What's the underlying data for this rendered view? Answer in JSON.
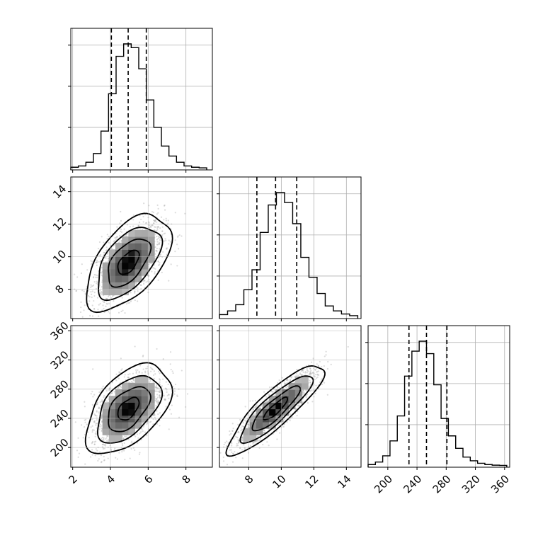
{
  "chart_data": {
    "type": "corner",
    "parameters": [
      {
        "ticks": [
          2,
          4,
          6,
          8
        ],
        "range": [
          1.9,
          9.4
        ]
      },
      {
        "ticks": [
          8,
          10,
          12,
          14
        ],
        "range": [
          6.2,
          14.9
        ]
      },
      {
        "ticks": [
          200,
          240,
          280,
          320,
          360
        ],
        "range": [
          173,
          367
        ]
      }
    ],
    "marginals": [
      {
        "parameter": 0,
        "quantiles": [
          4.05,
          4.94,
          5.9
        ],
        "bins": [
          1.9,
          2.3,
          2.7,
          3.1,
          3.5,
          3.9,
          4.3,
          4.7,
          5.1,
          5.5,
          5.9,
          6.3,
          6.7,
          7.1,
          7.5,
          7.9,
          8.3,
          8.7,
          9.1
        ],
        "counts": [
          0.01,
          0.02,
          0.05,
          0.12,
          0.3,
          0.6,
          0.9,
          1.0,
          0.97,
          0.8,
          0.55,
          0.33,
          0.18,
          0.1,
          0.05,
          0.02,
          0.01,
          0.005
        ]
      },
      {
        "parameter": 1,
        "quantiles": [
          8.5,
          9.65,
          10.95
        ],
        "bins": [
          6.2,
          6.7,
          7.2,
          7.7,
          8.2,
          8.7,
          9.2,
          9.7,
          10.2,
          10.7,
          11.2,
          11.7,
          12.2,
          12.7,
          13.2,
          13.7,
          14.2,
          14.7
        ],
        "counts": [
          0.02,
          0.05,
          0.1,
          0.22,
          0.38,
          0.68,
          0.9,
          1.0,
          0.92,
          0.75,
          0.48,
          0.32,
          0.19,
          0.09,
          0.05,
          0.025,
          0.012
        ]
      },
      {
        "parameter": 2,
        "quantiles": [
          229,
          253,
          281
        ],
        "bins": [
          173,
          183,
          193,
          203,
          213,
          223,
          233,
          243,
          253,
          263,
          273,
          283,
          293,
          303,
          313,
          323,
          333,
          343,
          353,
          363
        ],
        "counts": [
          0.01,
          0.03,
          0.08,
          0.2,
          0.4,
          0.72,
          0.92,
          1.0,
          0.9,
          0.65,
          0.38,
          0.24,
          0.14,
          0.07,
          0.04,
          0.02,
          0.01,
          0.005,
          0.003
        ]
      }
    ],
    "joint": [
      {
        "x_param": 0,
        "y_param": 1,
        "mean": [
          4.95,
          9.65
        ],
        "sd": [
          0.95,
          1.25
        ],
        "rho": 0.55,
        "samples": 1600
      },
      {
        "x_param": 0,
        "y_param": 2,
        "mean": [
          4.95,
          253
        ],
        "sd": [
          0.95,
          26
        ],
        "rho": 0.5,
        "samples": 1600
      },
      {
        "x_param": 1,
        "y_param": 2,
        "mean": [
          9.65,
          253
        ],
        "sd": [
          1.25,
          26
        ],
        "rho": 0.87,
        "samples": 1600
      }
    ],
    "contour_sigmas": [
      0.5,
      1.0,
      1.5,
      2.0
    ],
    "grid": true,
    "colors": {
      "hist": "#000000",
      "points": "#9a9a9a",
      "density_dark": "#000000",
      "density_light": "#ffffff"
    }
  }
}
